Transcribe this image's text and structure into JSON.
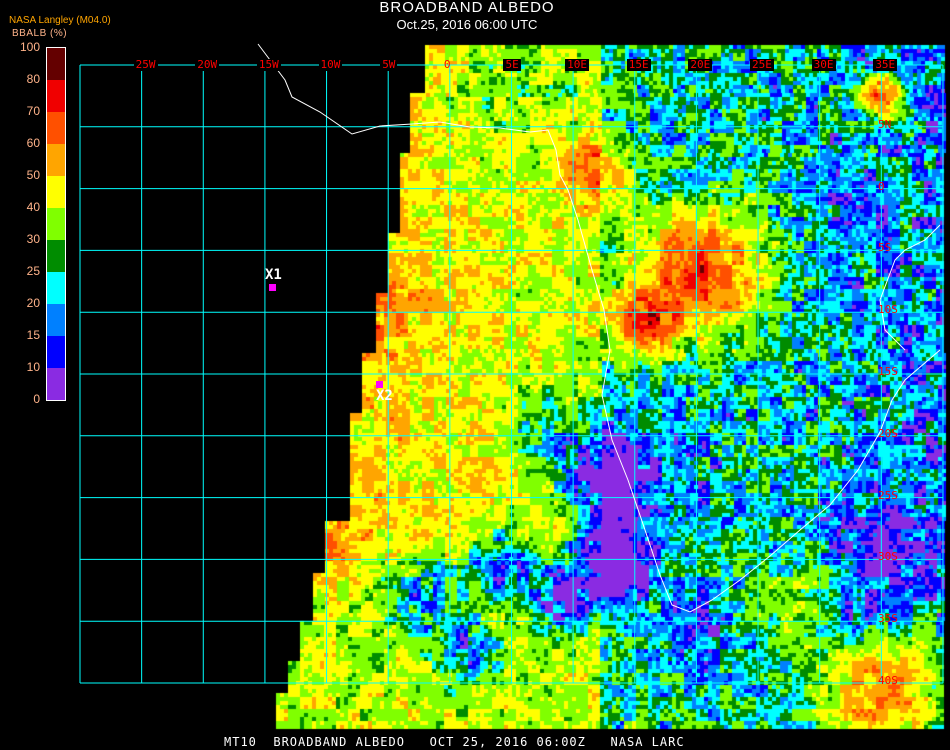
{
  "header": {
    "title": "BROADBAND ALBEDO",
    "subtitle": "Oct.25, 2016 06:00 UTC"
  },
  "legend": {
    "source": "NASA Langley (M04.0)",
    "unit": "BBALB (%)",
    "ticks": [
      "0",
      "10",
      "15",
      "20",
      "25",
      "30",
      "40",
      "50",
      "60",
      "70",
      "80",
      "100"
    ],
    "colors": [
      "#8a2be2",
      "#0000ff",
      "#0080ff",
      "#00ffff",
      "#008c00",
      "#80ff00",
      "#ffff00",
      "#ffa500",
      "#ff5000",
      "#f00000",
      "#640000"
    ]
  },
  "map": {
    "longitude_labels": [
      "25W",
      "20W",
      "15W",
      "10W",
      "5W",
      "0",
      "5E",
      "10E",
      "15E",
      "20E",
      "25E",
      "30E",
      "35E"
    ],
    "latitude_labels": [
      "5N",
      "0",
      "5S",
      "10S",
      "15S",
      "20S",
      "25S",
      "30S",
      "35S",
      "40S"
    ],
    "grid_color": "#00ffff",
    "coastline_color": "#ffffff",
    "markers": [
      {
        "label": "X1",
        "color": "#ff00ff"
      },
      {
        "label": "X2",
        "color": "#ff00ff"
      }
    ]
  },
  "footer": {
    "text": "MT10  BROADBAND ALBEDO   OCT 25, 2016 06:00Z   NASA LARC"
  }
}
